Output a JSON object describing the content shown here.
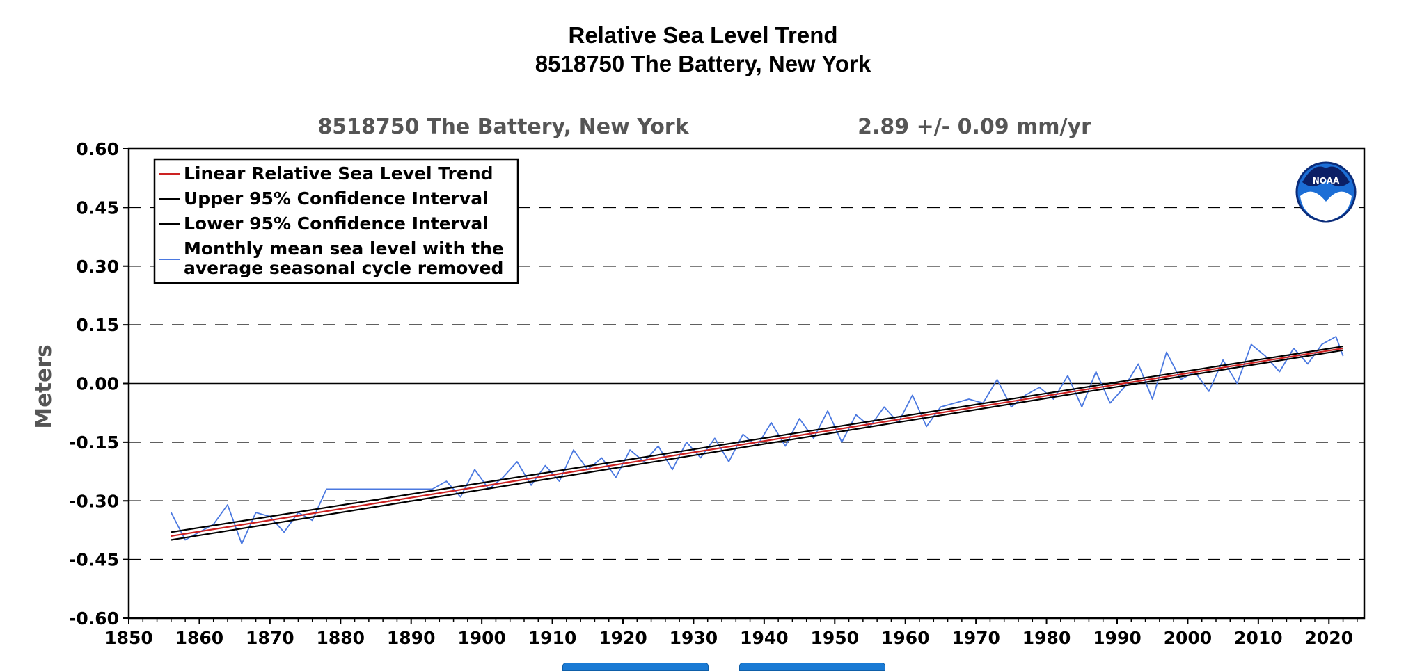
{
  "page": {
    "title_line1": "Relative Sea Level Trend",
    "title_line2": "8518750 The Battery, New York"
  },
  "chart_data": {
    "type": "line",
    "station_label": "8518750 The Battery, New York",
    "trend_label": "2.89 +/-  0.09 mm/yr",
    "xlabel": "",
    "ylabel": "Meters",
    "xlim": [
      1850,
      2025
    ],
    "ylim": [
      -0.6,
      0.6
    ],
    "x_ticks": [
      1850,
      1860,
      1870,
      1880,
      1890,
      1900,
      1910,
      1920,
      1930,
      1940,
      1950,
      1960,
      1970,
      1980,
      1990,
      2000,
      2010,
      2020
    ],
    "y_ticks": [
      "0.60",
      "0.45",
      "0.30",
      "0.15",
      "0.00",
      "-0.15",
      "-0.30",
      "-0.45",
      "-0.60"
    ],
    "grid": "horizontal dashed",
    "legend_position": "top-left",
    "series": [
      {
        "name": "Linear Relative Sea Level Trend",
        "color": "#cc2222",
        "x": [
          1856,
          2022
        ],
        "y": [
          -0.39,
          0.09
        ]
      },
      {
        "name": "Upper 95% Confidence Interval",
        "color": "#000000",
        "x": [
          1856,
          2022
        ],
        "y": [
          -0.38,
          0.095
        ]
      },
      {
        "name": "Lower 95% Confidence Interval",
        "color": "#000000",
        "x": [
          1856,
          2022
        ],
        "y": [
          -0.4,
          0.085
        ]
      },
      {
        "name": "Monthly mean sea level with the average seasonal cycle removed",
        "color": "#4a78e0",
        "x": [
          1856,
          1858,
          1860,
          1862,
          1864,
          1866,
          1868,
          1870,
          1872,
          1874,
          1876,
          1878,
          1893,
          1895,
          1897,
          1899,
          1901,
          1903,
          1905,
          1907,
          1909,
          1911,
          1913,
          1915,
          1917,
          1919,
          1921,
          1923,
          1925,
          1927,
          1929,
          1931,
          1933,
          1935,
          1937,
          1939,
          1941,
          1943,
          1945,
          1947,
          1949,
          1951,
          1953,
          1955,
          1957,
          1959,
          1961,
          1963,
          1965,
          1967,
          1969,
          1971,
          1973,
          1975,
          1977,
          1979,
          1981,
          1983,
          1985,
          1987,
          1989,
          1991,
          1993,
          1995,
          1997,
          1999,
          2001,
          2003,
          2005,
          2007,
          2009,
          2011,
          2013,
          2015,
          2017,
          2019,
          2021,
          2022
        ],
        "y": [
          -0.33,
          -0.4,
          -0.38,
          -0.36,
          -0.31,
          -0.41,
          -0.33,
          -0.34,
          -0.38,
          -0.33,
          -0.35,
          -0.27,
          -0.27,
          -0.25,
          -0.29,
          -0.22,
          -0.27,
          -0.24,
          -0.2,
          -0.26,
          -0.21,
          -0.25,
          -0.17,
          -0.22,
          -0.19,
          -0.24,
          -0.17,
          -0.2,
          -0.16,
          -0.22,
          -0.15,
          -0.19,
          -0.14,
          -0.2,
          -0.13,
          -0.16,
          -0.1,
          -0.16,
          -0.09,
          -0.14,
          -0.07,
          -0.15,
          -0.08,
          -0.11,
          -0.06,
          -0.1,
          -0.03,
          -0.11,
          -0.06,
          -0.05,
          -0.04,
          -0.05,
          0.01,
          -0.06,
          -0.03,
          -0.01,
          -0.04,
          0.02,
          -0.06,
          0.03,
          -0.05,
          -0.01,
          0.05,
          -0.04,
          0.08,
          0.01,
          0.03,
          -0.02,
          0.06,
          0.0,
          0.1,
          0.07,
          0.03,
          0.09,
          0.05,
          0.1,
          0.12,
          0.07
        ]
      }
    ]
  }
}
